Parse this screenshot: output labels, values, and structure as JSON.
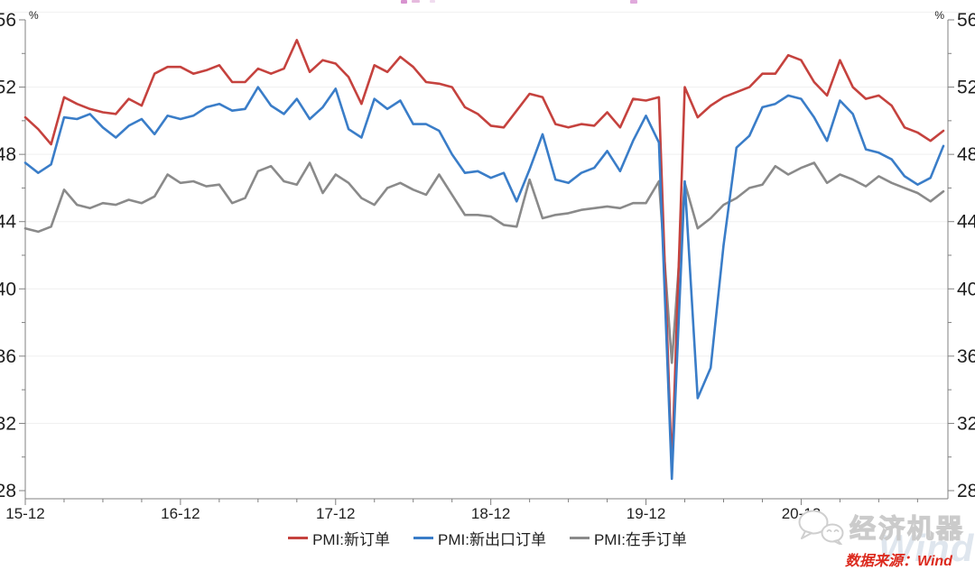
{
  "chart_data": {
    "type": "line",
    "grid": "horizontal-light",
    "legend_position": "bottom",
    "percent_label": "%",
    "ylim": [
      28,
      56
    ],
    "y_ticks": [
      28,
      32,
      36,
      40,
      44,
      48,
      52,
      56
    ],
    "x_axis_tick_labels": [
      "15-12",
      "16-12",
      "17-12",
      "18-12",
      "19-12",
      "20-12"
    ],
    "x": [
      "15-12",
      "16-01",
      "16-02",
      "16-03",
      "16-04",
      "16-05",
      "16-06",
      "16-07",
      "16-08",
      "16-09",
      "16-10",
      "16-11",
      "16-12",
      "17-01",
      "17-02",
      "17-03",
      "17-04",
      "17-05",
      "17-06",
      "17-07",
      "17-08",
      "17-09",
      "17-10",
      "17-11",
      "17-12",
      "18-01",
      "18-02",
      "18-03",
      "18-04",
      "18-05",
      "18-06",
      "18-07",
      "18-08",
      "18-09",
      "18-10",
      "18-11",
      "18-12",
      "19-01",
      "19-02",
      "19-03",
      "19-04",
      "19-05",
      "19-06",
      "19-07",
      "19-08",
      "19-09",
      "19-10",
      "19-11",
      "19-12",
      "20-01",
      "20-02",
      "20-03",
      "20-04",
      "20-05",
      "20-06",
      "20-07",
      "20-08",
      "20-09",
      "20-10",
      "20-11",
      "20-12",
      "21-01",
      "21-02",
      "21-03",
      "21-04",
      "21-05",
      "21-06",
      "21-07",
      "21-08",
      "21-09",
      "21-10",
      "21-11"
    ],
    "series": [
      {
        "id": "pmi-new-orders",
        "name": "PMI:新订单",
        "color": "#c5423e",
        "z": 2,
        "values": [
          50.2,
          49.5,
          48.6,
          51.4,
          51.0,
          50.7,
          50.5,
          50.4,
          51.3,
          50.9,
          52.8,
          53.2,
          53.2,
          52.8,
          53.0,
          53.3,
          52.3,
          52.3,
          53.1,
          52.8,
          53.1,
          54.8,
          52.9,
          53.6,
          53.4,
          52.6,
          51.0,
          53.3,
          52.9,
          53.8,
          53.2,
          52.3,
          52.2,
          52.0,
          50.8,
          50.4,
          49.7,
          49.6,
          50.6,
          51.6,
          51.4,
          49.8,
          49.6,
          49.8,
          49.7,
          50.5,
          49.6,
          51.3,
          51.2,
          51.4,
          29.3,
          52.0,
          50.2,
          50.9,
          51.4,
          51.7,
          52.0,
          52.8,
          52.8,
          53.9,
          53.6,
          52.3,
          51.5,
          53.6,
          52.0,
          51.3,
          51.5,
          50.9,
          49.6,
          49.3,
          48.8,
          49.4
        ]
      },
      {
        "id": "pmi-new-export-orders",
        "name": "PMI:新出口订单",
        "color": "#3a7dc8",
        "z": 3,
        "values": [
          47.5,
          46.9,
          47.4,
          50.2,
          50.1,
          50.4,
          49.6,
          49.0,
          49.7,
          50.1,
          49.2,
          50.3,
          50.1,
          50.3,
          50.8,
          51.0,
          50.6,
          50.7,
          52.0,
          50.9,
          50.4,
          51.3,
          50.1,
          50.8,
          51.9,
          49.5,
          49.0,
          51.3,
          50.7,
          51.2,
          49.8,
          49.8,
          49.4,
          48.0,
          46.9,
          47.0,
          46.6,
          46.9,
          45.2,
          47.1,
          49.2,
          46.5,
          46.3,
          46.9,
          47.2,
          48.2,
          47.0,
          48.8,
          50.3,
          48.7,
          28.7,
          46.4,
          33.5,
          35.3,
          42.6,
          48.4,
          49.1,
          50.8,
          51.0,
          51.5,
          51.3,
          50.2,
          48.8,
          51.2,
          50.4,
          48.3,
          48.1,
          47.7,
          46.7,
          46.2,
          46.6,
          48.5
        ]
      },
      {
        "id": "pmi-backlog-orders",
        "name": "PMI:在手订单",
        "color": "#8a8a8a",
        "z": 1,
        "values": [
          43.6,
          43.4,
          43.7,
          45.9,
          45.0,
          44.8,
          45.1,
          45.0,
          45.3,
          45.1,
          45.5,
          46.8,
          46.3,
          46.4,
          46.1,
          46.2,
          45.1,
          45.4,
          47.0,
          47.3,
          46.4,
          46.2,
          47.5,
          45.7,
          46.8,
          46.3,
          45.4,
          45.0,
          46.0,
          46.3,
          45.9,
          45.6,
          46.8,
          45.6,
          44.4,
          44.4,
          44.3,
          43.8,
          43.7,
          46.5,
          44.2,
          44.4,
          44.5,
          44.7,
          44.8,
          44.9,
          44.8,
          45.1,
          45.1,
          46.4,
          35.6,
          46.3,
          43.6,
          44.2,
          45.0,
          45.4,
          46.0,
          46.2,
          47.3,
          46.8,
          47.2,
          47.5,
          46.3,
          46.8,
          46.5,
          46.1,
          46.7,
          46.3,
          46.0,
          45.7,
          45.2,
          45.8
        ]
      }
    ]
  },
  "watermark": {
    "brand": "经济机器",
    "background_word": "Wind"
  },
  "source": {
    "label": "数据来源：Wind",
    "color": "#dc2a1e"
  }
}
